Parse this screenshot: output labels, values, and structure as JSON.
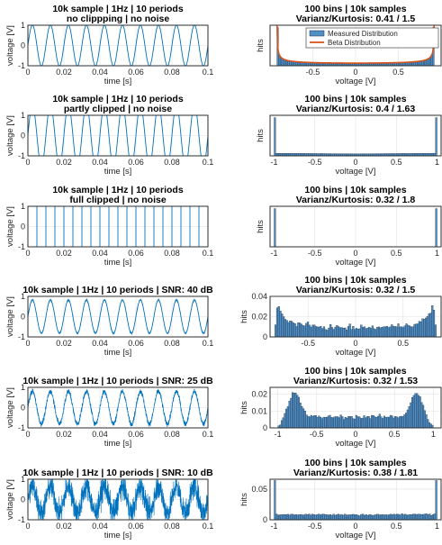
{
  "colors": {
    "signal": "#0072BD",
    "hist_face": "#4f8fc6",
    "hist_edge": "#1b2e44",
    "beta_line": "#D95319",
    "grid": "#e0e0e0",
    "axis": "#262626"
  },
  "chart_data": [
    {
      "type": "line",
      "panel": "signal-1",
      "title": [
        "10k sample | 1Hz | 10 periods",
        "no clippping | no noise"
      ],
      "xlabel": "time [s]",
      "ylabel": "voltage [V]",
      "xlim": [
        0,
        0.1
      ],
      "ylim": [
        -1,
        1
      ],
      "xticks": [
        "0",
        "0.02",
        "0.04",
        "0.06",
        "0.08",
        "0.1"
      ],
      "yticks": [
        "-1",
        "0",
        "1"
      ],
      "signal": {
        "periods": 10,
        "amplitude": 1.0,
        "clip": 1.0,
        "noise_amplitude": 0
      }
    },
    {
      "type": "bar",
      "panel": "hist-1",
      "title": [
        "100 bins | 10k samples",
        "Varianz/Kurtosis: 0.41 / 1.5"
      ],
      "xlabel": "voltage [V]",
      "ylabel": "hits",
      "xlim": [
        -1,
        1
      ],
      "xticks": [
        "-0.5",
        "0",
        "0.5"
      ],
      "yticks": [],
      "legend": {
        "position": "top-right",
        "entries": [
          "Measured Distribution",
          "Beta Distribution"
        ]
      },
      "series": [
        {
          "name": "Measured Distribution",
          "kind": "arcsine-histogram",
          "support": [
            -0.92,
            0.92
          ],
          "bins": 100,
          "edge_peak": 1.0,
          "center_level": 0.07
        },
        {
          "name": "Beta Distribution",
          "kind": "arcsine-curve",
          "support": [
            -0.92,
            0.92
          ]
        }
      ]
    },
    {
      "type": "line",
      "panel": "signal-2",
      "title": [
        "10k sample | 1Hz | 10 periods",
        "partly clipped | no noise"
      ],
      "xlabel": "time [s]",
      "ylabel": "voltage [V]",
      "xlim": [
        0,
        0.1
      ],
      "ylim": [
        -1,
        1
      ],
      "xticks": [
        "0",
        "0.02",
        "0.04",
        "0.06",
        "0.08",
        "0.1"
      ],
      "yticks": [
        "-1",
        "0",
        "1"
      ],
      "signal": {
        "periods": 10,
        "amplitude": 1.5,
        "clip": 1.0,
        "noise_amplitude": 0
      }
    },
    {
      "type": "bar",
      "panel": "hist-2",
      "title": [
        "100 bins | 10k samples",
        "Varianz/Kurtosis: 0.4 / 1.63"
      ],
      "xlabel": "voltage [V]",
      "ylabel": "hits",
      "xlim": [
        -1.05,
        1.05
      ],
      "xticks": [
        "-1",
        "-0.5",
        "0",
        "0.5",
        "1"
      ],
      "yticks": [],
      "series": [
        {
          "kind": "clipped-histogram",
          "support": [
            -1,
            1
          ],
          "bins": 100,
          "edge_peak": 1.0,
          "center_level": 0.05
        }
      ]
    },
    {
      "type": "line",
      "panel": "signal-3",
      "title": [
        "10k sample | 1Hz | 10 periods",
        "full clipped | no noise"
      ],
      "xlabel": "time [s]",
      "ylabel": "voltage [V]",
      "xlim": [
        0,
        0.1
      ],
      "ylim": [
        -1,
        1
      ],
      "xticks": [
        "0",
        "0.02",
        "0.04",
        "0.06",
        "0.08",
        "0.1"
      ],
      "yticks": [
        "-1",
        "0",
        "1"
      ],
      "signal": {
        "periods": 10,
        "square": true
      }
    },
    {
      "type": "bar",
      "panel": "hist-3",
      "title": [
        "100 bins | 10k samples",
        "Varianz/Kurtosis: 0.32 / 1.8"
      ],
      "xlabel": "voltage [V]",
      "ylabel": "hits",
      "xlim": [
        -1.05,
        1.05
      ],
      "xticks": [
        "-1",
        "-0.5",
        "0",
        "0.5",
        "1"
      ],
      "yticks": [],
      "series": [
        {
          "kind": "two-spikes",
          "support": [
            -1,
            1
          ],
          "bins": 100,
          "edge_peak": 0.92,
          "center_level": 0
        }
      ]
    },
    {
      "type": "line",
      "panel": "signal-4",
      "title": [
        "10k sample | 1Hz | 10 periods | SNR: 40 dB"
      ],
      "xlabel": "time [s]",
      "ylabel": "voltage [V]",
      "xlim": [
        0,
        0.1
      ],
      "ylim": [
        -1,
        1
      ],
      "xticks": [
        "0",
        "0.02",
        "0.04",
        "0.06",
        "0.08",
        "0.1"
      ],
      "yticks": [
        "-1",
        "0",
        "1"
      ],
      "signal": {
        "periods": 10,
        "amplitude": 0.82,
        "clip": 10,
        "noise_amplitude": 0.02
      }
    },
    {
      "type": "bar",
      "panel": "hist-4",
      "title": [
        "100 bins | 10k samples",
        "Varianz/Kurtosis: 0.32 / 1.5"
      ],
      "xlabel": "voltage [V]",
      "ylabel": "hits",
      "xlim": [
        -0.9,
        0.9
      ],
      "ylim": [
        0,
        0.04
      ],
      "xticks": [
        "-0.5",
        "0",
        "0.5"
      ],
      "yticks": [
        "0",
        "0.02",
        "0.04"
      ],
      "series": [
        {
          "kind": "noisy-arcsine",
          "support": [
            -0.85,
            0.85
          ],
          "bins": 100,
          "edge_peak": 0.034,
          "center_level": 0.009
        }
      ]
    },
    {
      "type": "line",
      "panel": "signal-5",
      "title": [
        "10k sample | 1Hz | 10 periods | SNR: 25 dB"
      ],
      "xlabel": "time [s]",
      "ylabel": "voltage [V]",
      "xlim": [
        0,
        0.1
      ],
      "ylim": [
        -1,
        1
      ],
      "xticks": [
        "0",
        "0.02",
        "0.04",
        "0.06",
        "0.08",
        "0.1"
      ],
      "yticks": [
        "-1",
        "0",
        "1"
      ],
      "signal": {
        "periods": 10,
        "amplitude": 0.8,
        "clip": 10,
        "noise_amplitude": 0.13
      }
    },
    {
      "type": "bar",
      "panel": "hist-5",
      "title": [
        "100 bins | 10k samples",
        "Varianz/Kurtosis: 0.32 / 1.53"
      ],
      "xlabel": "voltage [V]",
      "ylabel": "hits",
      "xlim": [
        -1.1,
        1.1
      ],
      "ylim": [
        0,
        0.024
      ],
      "xticks": [
        "-1",
        "-0.5",
        "0",
        "0.5",
        "1"
      ],
      "yticks": [
        "0",
        "0.01",
        "0.02"
      ],
      "series": [
        {
          "kind": "bimodal",
          "support": [
            -1.0,
            1.0
          ],
          "bins": 100,
          "peak_positions": [
            -0.78,
            0.78
          ],
          "edge_peak": 0.021,
          "center_level": 0.0065
        }
      ]
    },
    {
      "type": "line",
      "panel": "signal-6",
      "title": [
        "10k sample | 1Hz | 10 periods | SNR: 10 dB"
      ],
      "xlabel": "time [s]",
      "ylabel": "voltage [V]",
      "xlim": [
        0,
        0.1
      ],
      "ylim": [
        -1,
        1
      ],
      "xticks": [
        "0",
        "0.02",
        "0.04",
        "0.06",
        "0.08",
        "0.1"
      ],
      "yticks": [
        "-1",
        "0",
        "1"
      ],
      "signal": {
        "periods": 10,
        "amplitude": 0.65,
        "clip": 1.0,
        "noise_amplitude": 0.6
      }
    },
    {
      "type": "bar",
      "panel": "hist-6",
      "title": [
        "100 bins | 10k samples",
        "Varianz/Kurtosis: 0.38 / 1.81"
      ],
      "xlabel": "voltage [V]",
      "ylabel": "hits",
      "xlim": [
        -1.05,
        1.05
      ],
      "ylim": [
        0,
        0.066
      ],
      "xticks": [
        "-1",
        "-0.5",
        "0",
        "0.5",
        "1"
      ],
      "yticks": [
        "0",
        "0.05"
      ],
      "series": [
        {
          "kind": "clipped-noisy",
          "support": [
            -1,
            1
          ],
          "bins": 100,
          "edge_peak": 0.064,
          "center_level": 0.0085
        }
      ]
    }
  ]
}
